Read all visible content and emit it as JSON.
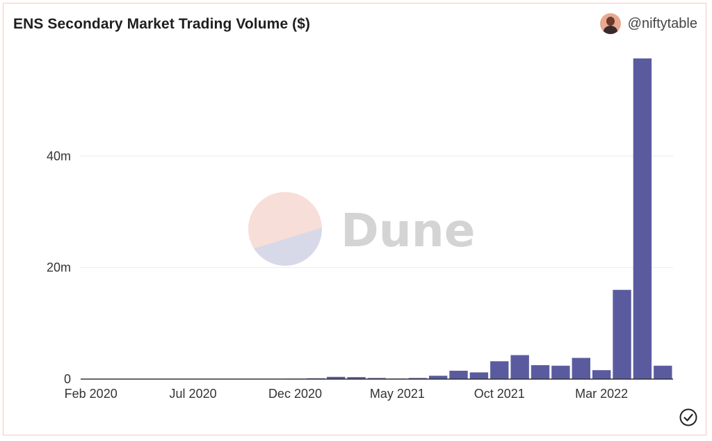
{
  "header": {
    "title": "ENS Secondary Market Trading Volume ($)",
    "author": "@niftytable"
  },
  "watermark": {
    "text": "Dune"
  },
  "colors": {
    "bar": "#5a5b9f",
    "grid": "#ececec",
    "axis": "#333333",
    "border": "#f2cbbf"
  },
  "icons": {
    "avatar": "avatar-icon",
    "status": "check-circle-icon"
  },
  "chart_data": {
    "type": "bar",
    "title": "ENS Secondary Market Trading Volume ($)",
    "xlabel": "",
    "ylabel": "",
    "ylim": [
      0,
      58000000
    ],
    "y_ticks": [
      0,
      20000000,
      40000000
    ],
    "y_tick_labels": [
      "0",
      "20m",
      "40m"
    ],
    "x_tick_labels": [
      "Feb 2020",
      "Jul 2020",
      "Dec 2020",
      "May 2021",
      "Oct 2021",
      "Mar 2022"
    ],
    "categories": [
      "Feb 2020",
      "Mar 2020",
      "Apr 2020",
      "May 2020",
      "Jun 2020",
      "Jul 2020",
      "Aug 2020",
      "Sep 2020",
      "Oct 2020",
      "Nov 2020",
      "Dec 2020",
      "Jan 2021",
      "Feb 2021",
      "Mar 2021",
      "Apr 2021",
      "May 2021",
      "Jun 2021",
      "Jul 2021",
      "Aug 2021",
      "Sep 2021",
      "Oct 2021",
      "Nov 2021",
      "Dec 2021",
      "Jan 2022",
      "Feb 2022",
      "Mar 2022",
      "Apr 2022",
      "May 2022",
      "Jun 2022"
    ],
    "values": [
      20000,
      15000,
      15000,
      15000,
      20000,
      15000,
      20000,
      20000,
      25000,
      25000,
      80000,
      150000,
      400000,
      350000,
      200000,
      100000,
      200000,
      600000,
      1500000,
      1200000,
      3200000,
      4300000,
      2500000,
      2400000,
      3800000,
      1600000,
      16000000,
      57500000,
      2400000
    ],
    "grid": true,
    "legend": "none"
  }
}
